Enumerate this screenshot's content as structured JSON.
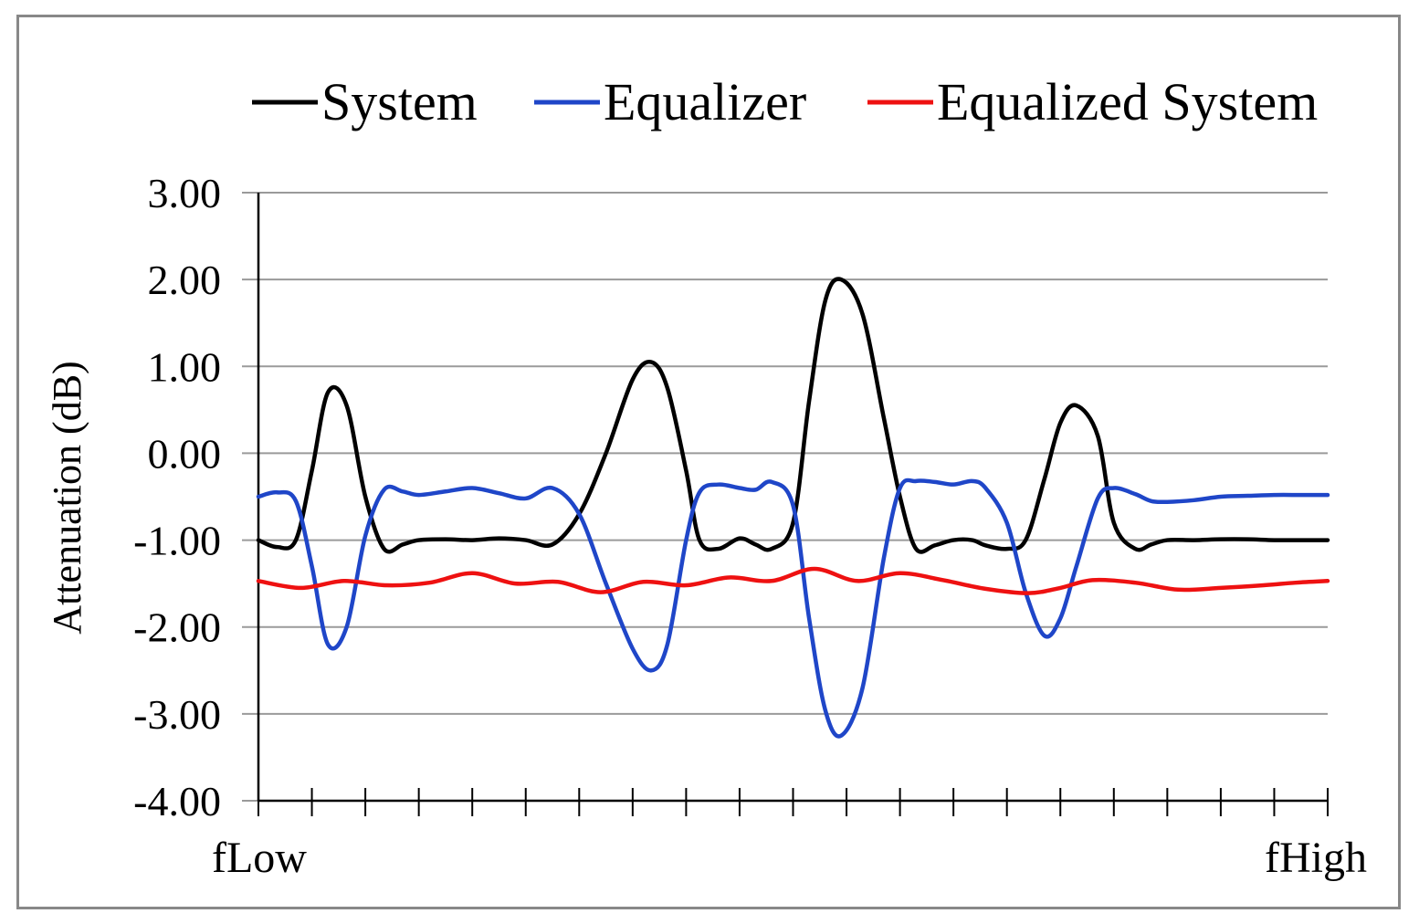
{
  "chart_data": {
    "type": "line",
    "title": "",
    "ylabel": "Attenuation (dB)",
    "xlabel": "",
    "x_labels": {
      "start": "fLow",
      "end": "fHigh"
    },
    "ylim": [
      -4,
      3
    ],
    "yticks": [
      "3.00",
      "2.00",
      "1.00",
      "0.00",
      "-1.00",
      "-2.00",
      "-3.00",
      "-4.00"
    ],
    "ytick_values": [
      3,
      2,
      1,
      0,
      -1,
      -2,
      -3,
      -4
    ],
    "xlim": [
      0,
      20
    ],
    "x_tick_count": 21,
    "grid": true,
    "legend_position": "top",
    "series": [
      {
        "name": "System",
        "color": "#000000",
        "x": [
          0,
          0.35,
          0.7,
          1.0,
          1.3,
          1.65,
          2.0,
          2.35,
          2.7,
          3.0,
          3.5,
          4.0,
          4.5,
          5.0,
          5.5,
          6.0,
          6.5,
          7.0,
          7.35,
          7.65,
          8.0,
          8.25,
          8.6,
          9.0,
          9.3,
          9.6,
          10.0,
          10.3,
          10.6,
          10.9,
          11.3,
          11.7,
          12.0,
          12.3,
          12.65,
          13.0,
          13.35,
          13.6,
          14.0,
          14.35,
          14.7,
          15.0,
          15.3,
          15.7,
          16.0,
          16.4,
          16.7,
          17.0,
          17.5,
          18.0,
          18.5,
          19.0,
          19.5,
          20.0
        ],
        "y": [
          -1.0,
          -1.08,
          -1.0,
          -0.2,
          0.7,
          0.55,
          -0.5,
          -1.1,
          -1.05,
          -1.0,
          -0.99,
          -1.0,
          -0.98,
          -1.0,
          -1.05,
          -0.7,
          0.0,
          0.85,
          1.05,
          0.75,
          -0.2,
          -1.0,
          -1.1,
          -0.98,
          -1.05,
          -1.1,
          -0.8,
          0.6,
          1.75,
          2.0,
          1.6,
          0.4,
          -0.5,
          -1.1,
          -1.06,
          -1.0,
          -1.0,
          -1.06,
          -1.1,
          -1.0,
          -0.3,
          0.35,
          0.55,
          0.2,
          -0.8,
          -1.1,
          -1.05,
          -1.0,
          -1.0,
          -0.99,
          -0.99,
          -1.0,
          -1.0,
          -1.0
        ]
      },
      {
        "name": "Equalizer",
        "color": "#1f46c8",
        "x": [
          0,
          0.35,
          0.7,
          1.0,
          1.3,
          1.65,
          2.0,
          2.35,
          2.7,
          3.0,
          3.5,
          4.0,
          4.5,
          5.0,
          5.5,
          6.0,
          6.5,
          7.0,
          7.35,
          7.65,
          8.0,
          8.25,
          8.6,
          9.0,
          9.3,
          9.6,
          10.0,
          10.3,
          10.6,
          10.9,
          11.3,
          11.7,
          12.0,
          12.3,
          12.65,
          13.0,
          13.35,
          13.6,
          14.0,
          14.35,
          14.7,
          15.0,
          15.3,
          15.7,
          16.0,
          16.4,
          16.7,
          17.0,
          17.5,
          18.0,
          18.5,
          19.0,
          19.5,
          20.0
        ],
        "y": [
          -0.5,
          -0.45,
          -0.55,
          -1.3,
          -2.2,
          -2.0,
          -0.95,
          -0.42,
          -0.44,
          -0.48,
          -0.44,
          -0.4,
          -0.46,
          -0.52,
          -0.4,
          -0.7,
          -1.5,
          -2.25,
          -2.5,
          -2.2,
          -1.0,
          -0.45,
          -0.36,
          -0.4,
          -0.42,
          -0.33,
          -0.6,
          -1.9,
          -2.95,
          -3.25,
          -2.7,
          -1.2,
          -0.4,
          -0.32,
          -0.33,
          -0.36,
          -0.32,
          -0.4,
          -0.8,
          -1.6,
          -2.1,
          -1.9,
          -1.3,
          -0.52,
          -0.4,
          -0.47,
          -0.55,
          -0.56,
          -0.54,
          -0.5,
          -0.49,
          -0.48,
          -0.48,
          -0.48
        ]
      },
      {
        "name": "Equalized System",
        "color": "#ee1111",
        "x": [
          0,
          0.8,
          1.6,
          2.4,
          3.2,
          4.0,
          4.8,
          5.6,
          6.4,
          7.2,
          8.0,
          8.8,
          9.6,
          10.4,
          11.2,
          12.0,
          12.8,
          13.6,
          14.4,
          15.0,
          15.6,
          16.4,
          17.2,
          18.0,
          18.8,
          19.4,
          20.0
        ],
        "y": [
          -1.47,
          -1.55,
          -1.47,
          -1.52,
          -1.49,
          -1.38,
          -1.5,
          -1.48,
          -1.6,
          -1.48,
          -1.52,
          -1.43,
          -1.47,
          -1.33,
          -1.47,
          -1.38,
          -1.46,
          -1.56,
          -1.61,
          -1.55,
          -1.46,
          -1.49,
          -1.57,
          -1.55,
          -1.52,
          -1.49,
          -1.47
        ]
      }
    ]
  }
}
